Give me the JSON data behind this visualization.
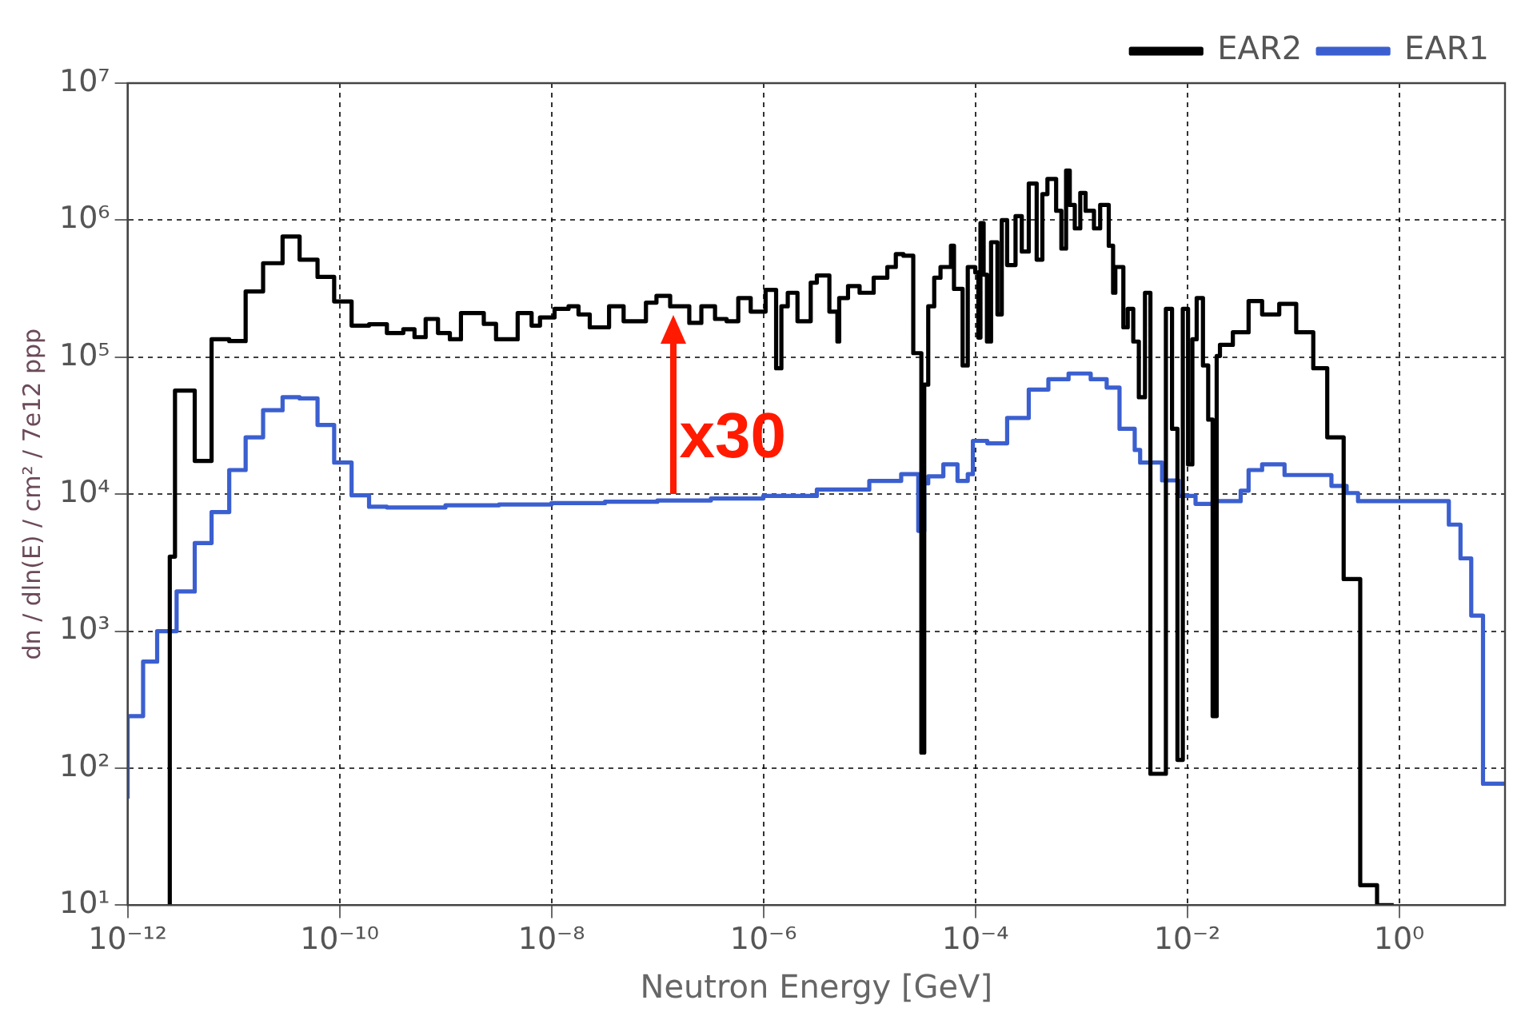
{
  "chart_data": {
    "type": "step",
    "xlabel": "Neutron Energy [GeV]",
    "ylabel": "dn / dln(E) / cm² / 7e12 ppp",
    "log": "xy",
    "grid": true,
    "legend": "top right",
    "xlim": [
      1e-12,
      10
    ],
    "ylim": [
      10,
      10000000
    ],
    "xticks": [
      {
        "value": 1e-12,
        "label": "10⁻¹²"
      },
      {
        "value": 1e-10,
        "label": "10⁻¹⁰"
      },
      {
        "value": 1e-08,
        "label": "10⁻⁸"
      },
      {
        "value": 1e-06,
        "label": "10⁻⁶"
      },
      {
        "value": 0.0001,
        "label": "10⁻⁴"
      },
      {
        "value": 0.01,
        "label": "10⁻²"
      },
      {
        "value": 1,
        "label": "10⁰"
      }
    ],
    "yticks": [
      {
        "value": 10,
        "label": "10¹"
      },
      {
        "value": 100,
        "label": "10²"
      },
      {
        "value": 1000,
        "label": "10³"
      },
      {
        "value": 10000,
        "label": "10⁴"
      },
      {
        "value": 100000,
        "label": "10⁵"
      },
      {
        "value": 1000000,
        "label": "10⁶"
      },
      {
        "value": 10000000,
        "label": "10⁷"
      }
    ],
    "annotations": [
      {
        "text": "x30",
        "x": 1.4e-07,
        "y": 10000
      }
    ],
    "series": [
      {
        "name": "EAR2",
        "color": "#000000",
        "x": [
          2.5e-12,
          2.8e-12,
          4.3e-12,
          6.2e-12,
          9.1e-12,
          1.3e-11,
          1.9e-11,
          2.9e-11,
          4.2e-11,
          6.2e-11,
          8.9e-11,
          1.3e-10,
          1.9e-10,
          2.8e-10,
          4e-10,
          5.1e-10,
          6.5e-10,
          8.5e-10,
          1.1e-09,
          1.4e-09,
          2.3e-09,
          3e-09,
          4.8e-09,
          6.5e-09,
          7.8e-09,
          1.07e-08,
          1.45e-08,
          1.8e-08,
          2.3e-08,
          3.5e-08,
          4.8e-08,
          7.8e-08,
          9.8e-08,
          1.32e-07,
          2e-07,
          2.6e-07,
          3.5e-07,
          4.5e-07,
          5.8e-07,
          7.6e-07,
          1.05e-06,
          1.32e-06,
          1.48e-06,
          1.7e-06,
          2.1e-06,
          2.8e-06,
          3.2e-06,
          4.2e-06,
          5e-06,
          5.2e-06,
          6.3e-06,
          8.1e-06,
          1.1e-05,
          1.48e-05,
          1.78e-05,
          2.1e-05,
          2.6e-05,
          3.1e-05,
          3.3e-05,
          3.6e-05,
          4.1e-05,
          4.7e-05,
          5.9e-05,
          6.3e-05,
          7.6e-05,
          8.5e-05,
          0.0001,
          0.000107,
          0.000112,
          0.00012,
          0.000129,
          0.000141,
          0.000162,
          0.000178,
          0.0002,
          0.00024,
          0.000275,
          0.00032,
          0.00038,
          0.00043,
          0.00048,
          0.00058,
          0.00065,
          0.00072,
          0.00078,
          0.00087,
          0.00098,
          0.0011,
          0.00132,
          0.00151,
          0.00182,
          0.002,
          0.0021,
          0.0025,
          0.00275,
          0.0031,
          0.0035,
          0.004,
          0.0045,
          0.0063,
          0.0072,
          0.0081,
          0.0091,
          0.0102,
          0.0112,
          0.0123,
          0.0141,
          0.0158,
          0.0174,
          0.019,
          0.0204,
          0.027,
          0.038,
          0.051,
          0.074,
          0.107,
          0.155,
          0.21,
          0.3,
          0.43,
          0.62,
          0.89
        ],
        "values": [
          10,
          3500,
          57000,
          17500,
          135000,
          131000,
          302000,
          485000,
          760000,
          515000,
          385000,
          255000,
          170000,
          174000,
          150000,
          160000,
          140000,
          190000,
          150000,
          135000,
          210000,
          175000,
          135000,
          210000,
          170000,
          195000,
          225000,
          235000,
          205000,
          165000,
          235000,
          183000,
          250000,
          280000,
          235000,
          178000,
          235000,
          190000,
          183000,
          270000,
          215000,
          310000,
          83000,
          235000,
          295000,
          183000,
          350000,
          395000,
          215000,
          130000,
          270000,
          330000,
          295000,
          380000,
          455000,
          565000,
          550000,
          107000,
          130,
          63000,
          235000,
          380000,
          455000,
          650000,
          315000,
          87000,
          455000,
          415000,
          139000,
          950000,
          400000,
          130000,
          690000,
          205000,
          1000000,
          470000,
          1070000,
          590000,
          1850000,
          515000,
          1550000,
          2000000,
          1170000,
          620000,
          2300000,
          1290000,
          870000,
          1580000,
          1170000,
          870000,
          1290000,
          650000,
          295000,
          455000,
          165000,
          225000,
          130000,
          51000,
          295000,
          91,
          225000,
          30000,
          115,
          225000,
          16500,
          135000,
          270000,
          87000,
          35000,
          240,
          102000,
          123000,
          152000,
          257000,
          205000,
          245000,
          152000,
          83000,
          26000,
          2400,
          14,
          10
        ]
      },
      {
        "name": "EAR1",
        "color": "#3b5fcf",
        "x": [
          1e-12,
          1.4e-12,
          1.9e-12,
          2.9e-12,
          4.3e-12,
          6.2e-12,
          9.1e-12,
          1.3e-11,
          1.9e-11,
          2.9e-11,
          4.2e-11,
          6.2e-11,
          8.9e-11,
          1.3e-10,
          1.9e-10,
          2.8e-10,
          1e-09,
          3.2e-09,
          1e-08,
          3.2e-08,
          1e-07,
          3.2e-07,
          1e-06,
          3.2e-06,
          1e-05,
          2e-05,
          2.9e-05,
          3.3e-05,
          3.6e-05,
          5e-05,
          6.8e-05,
          8.5e-05,
          9.5e-05,
          0.00013,
          0.0002,
          0.00032,
          0.00049,
          0.00076,
          0.00123,
          0.00174,
          0.0023,
          0.0032,
          0.0036,
          0.0058,
          0.0083,
          0.012,
          0.0174,
          0.032,
          0.038,
          0.051,
          0.083,
          0.23,
          0.32,
          0.41,
          2.95,
          3.8,
          4.8,
          6.2,
          7.8,
          10
        ],
        "values": [
          60,
          240,
          600,
          1000,
          1950,
          4400,
          7400,
          15000,
          26000,
          41000,
          51000,
          50000,
          32000,
          17000,
          9800,
          8100,
          8000,
          8300,
          8400,
          8600,
          8800,
          9000,
          9300,
          9700,
          10800,
          12500,
          14000,
          5400,
          12000,
          13500,
          16500,
          12500,
          14000,
          24500,
          23500,
          36000,
          58000,
          69000,
          76000,
          69000,
          60000,
          30000,
          21000,
          17000,
          12600,
          9700,
          8500,
          8900,
          10600,
          15000,
          16500,
          13800,
          11500,
          10200,
          8900,
          6000,
          3400,
          1300,
          77,
          77
        ]
      }
    ]
  }
}
